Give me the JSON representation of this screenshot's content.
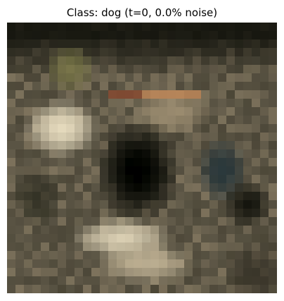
{
  "title": "Class: dog (t=0, 0.0% noise)",
  "image": {
    "grid_size": 32,
    "palette": {
      "darkest": "#0b0c06",
      "dark": "#22231a",
      "dark_olive": "#3a3a2a",
      "mid": "#5f5a48",
      "mid_light": "#8a7f66",
      "tan": "#a8987a",
      "light": "#cbbd9c",
      "cream": "#e6dcc0",
      "accent_red": "#8a4a30",
      "accent_orange": "#c08050",
      "accent_teal": "#2a3a3e",
      "accent_olive": "#8a8a4a"
    }
  }
}
